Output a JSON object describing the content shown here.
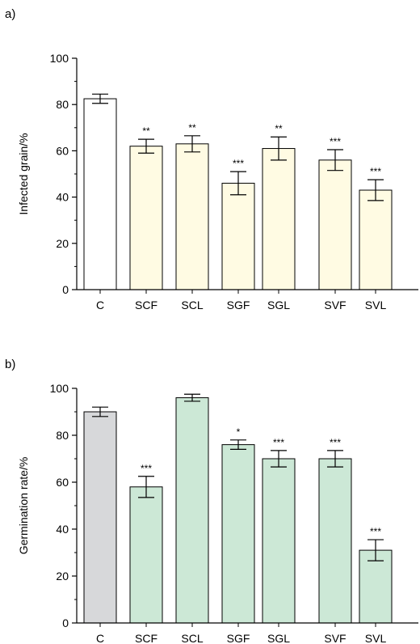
{
  "chart_data": [
    {
      "type": "bar",
      "panel_label": "a)",
      "title": "",
      "xlabel": "",
      "ylabel": "Infected grain/%",
      "ylim": [
        0,
        100
      ],
      "yticks": [
        "0",
        "20",
        "40",
        "60",
        "80",
        "100"
      ],
      "categories": [
        "C",
        "SCF",
        "SCL",
        "SGF",
        "SGL",
        "SVF",
        "SVL"
      ],
      "values": [
        82.5,
        62,
        63,
        46,
        61,
        56,
        43
      ],
      "errors": [
        2,
        3,
        3.5,
        5,
        5,
        4.5,
        4.5
      ],
      "significance": [
        "",
        "**",
        "**",
        "***",
        "**",
        "***",
        "***"
      ],
      "colors": [
        "#ffffff",
        "#fffbe3",
        "#fffbe3",
        "#fffbe3",
        "#fffbe3",
        "#fffbe3",
        "#fffbe3"
      ]
    },
    {
      "type": "bar",
      "panel_label": "b)",
      "title": "",
      "xlabel": "",
      "ylabel": "Germination rate/%",
      "ylim": [
        0,
        100
      ],
      "yticks": [
        "0",
        "20",
        "40",
        "60",
        "80",
        "100"
      ],
      "categories": [
        "C",
        "SCF",
        "SCL",
        "SGF",
        "SGL",
        "SVF",
        "SVL"
      ],
      "values": [
        90,
        58,
        96,
        76,
        70,
        70,
        31
      ],
      "errors": [
        2,
        4.5,
        1.5,
        2,
        3.5,
        3.5,
        4.5
      ],
      "significance": [
        "",
        "***",
        "",
        "*",
        "***",
        "***",
        "***"
      ],
      "colors": [
        "#d7d8da",
        "#cce8d6",
        "#cce8d6",
        "#cce8d6",
        "#cce8d6",
        "#cce8d6",
        "#cce8d6"
      ]
    }
  ]
}
